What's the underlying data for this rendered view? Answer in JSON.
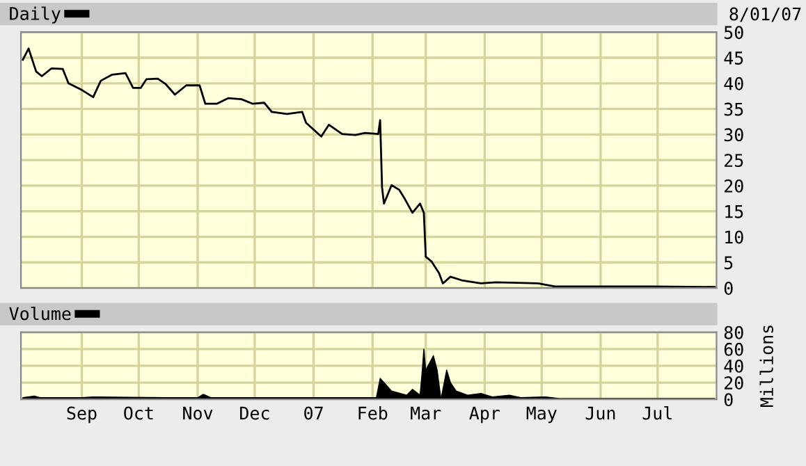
{
  "chart_data": [
    {
      "type": "line",
      "legend": "top left",
      "grid": true,
      "tick_labels": "y",
      "marker": "none",
      "line_style": "solid",
      "annotations": [
        "8/01/07"
      ],
      "xlim": [
        "2006-07-31",
        "2007-08-01"
      ],
      "xticks": [
        {
          "value": "2006-09-01",
          "label": null
        },
        {
          "value": "2006-10-01",
          "label": null
        },
        {
          "value": "2006-11-01",
          "label": null
        },
        {
          "value": "2006-12-01",
          "label": null
        },
        {
          "value": "2007-01-01",
          "label": null
        },
        {
          "value": "2007-02-01",
          "label": null
        },
        {
          "value": "2007-03-01",
          "label": null
        },
        {
          "value": "2007-04-01",
          "label": null
        },
        {
          "value": "2007-05-01",
          "label": null
        },
        {
          "value": "2007-06-01",
          "label": null
        },
        {
          "value": "2007-07-01",
          "label": null
        }
      ],
      "ylim": [
        0,
        50
      ],
      "yticks": [
        0,
        5,
        10,
        15,
        20,
        25,
        30,
        35,
        40,
        45,
        50
      ],
      "series": [
        {
          "name": "Daily",
          "color": "#000000",
          "x": [
            "2006-08-01",
            "2006-08-04",
            "2006-08-08",
            "2006-08-11",
            "2006-08-16",
            "2006-08-22",
            "2006-08-25",
            "2006-09-01",
            "2006-09-07",
            "2006-09-11",
            "2006-09-17",
            "2006-09-24",
            "2006-09-28",
            "2006-10-02",
            "2006-10-05",
            "2006-10-11",
            "2006-10-15",
            "2006-10-20",
            "2006-10-26",
            "2006-11-02",
            "2006-11-05",
            "2006-11-11",
            "2006-11-17",
            "2006-11-24",
            "2006-11-30",
            "2006-12-06",
            "2006-12-10",
            "2006-12-18",
            "2006-12-26",
            "2006-12-28",
            "2007-01-05",
            "2007-01-09",
            "2007-01-16",
            "2007-01-23",
            "2007-01-28",
            "2007-02-04",
            "2007-02-05",
            "2007-02-06",
            "2007-02-07",
            "2007-02-11",
            "2007-02-15",
            "2007-02-18",
            "2007-02-22",
            "2007-02-26",
            "2007-02-28",
            "2007-03-01",
            "2007-03-04",
            "2007-03-08",
            "2007-03-10",
            "2007-03-14",
            "2007-03-20",
            "2007-03-30",
            "2007-04-07",
            "2007-04-29",
            "2007-05-08",
            "2007-06-28",
            "2007-07-31"
          ],
          "values": [
            44.6,
            46.8,
            42.3,
            41.4,
            42.9,
            42.8,
            40.0,
            38.7,
            37.3,
            40.5,
            41.7,
            42.0,
            39.1,
            39.1,
            40.8,
            40.9,
            39.9,
            37.8,
            39.6,
            39.6,
            36.0,
            36.0,
            37.1,
            36.9,
            36.0,
            36.2,
            34.4,
            34.0,
            34.4,
            32.3,
            29.6,
            31.9,
            30.1,
            29.9,
            30.3,
            30.1,
            32.8,
            19.7,
            16.5,
            20.1,
            19.2,
            17.4,
            14.7,
            16.5,
            14.7,
            6.1,
            5.2,
            2.9,
            0.9,
            2.2,
            1.5,
            0.9,
            1.1,
            0.9,
            0.3,
            0.3,
            0.2
          ]
        }
      ]
    },
    {
      "type": "area",
      "legend": "top left",
      "grid": true,
      "ylabel": "Millions",
      "xlim": [
        "2006-07-31",
        "2007-08-01"
      ],
      "xticks": [
        {
          "value": "2006-09-01",
          "label": "Sep"
        },
        {
          "value": "2006-10-01",
          "label": "Oct"
        },
        {
          "value": "2006-11-01",
          "label": "Nov"
        },
        {
          "value": "2006-12-01",
          "label": "Dec"
        },
        {
          "value": "2007-01-01",
          "label": "07"
        },
        {
          "value": "2007-02-01",
          "label": "Feb"
        },
        {
          "value": "2007-03-01",
          "label": "Mar"
        },
        {
          "value": "2007-04-01",
          "label": "Apr"
        },
        {
          "value": "2007-05-01",
          "label": "May"
        },
        {
          "value": "2007-06-01",
          "label": "Jun"
        },
        {
          "value": "2007-07-01",
          "label": "Jul"
        }
      ],
      "ylim": [
        0,
        80
      ],
      "yticks": [
        0,
        20,
        40,
        60,
        80
      ],
      "series": [
        {
          "name": "Volume",
          "color": "#000000",
          "x": [
            "2006-08-01",
            "2006-08-07",
            "2006-08-10",
            "2006-09-01",
            "2006-09-07",
            "2006-10-15",
            "2006-11-01",
            "2006-11-04",
            "2006-11-08",
            "2006-12-01",
            "2007-01-01",
            "2007-01-31",
            "2007-02-03",
            "2007-02-05",
            "2007-02-07",
            "2007-02-11",
            "2007-02-19",
            "2007-02-22",
            "2007-02-26",
            "2007-02-27",
            "2007-02-28",
            "2007-03-01",
            "2007-03-05",
            "2007-03-07",
            "2007-03-09",
            "2007-03-12",
            "2007-03-14",
            "2007-03-17",
            "2007-03-23",
            "2007-03-30",
            "2007-04-05",
            "2007-04-14",
            "2007-04-20",
            "2007-05-03",
            "2007-05-10",
            "2007-07-31"
          ],
          "values": [
            2,
            4,
            2,
            2,
            3,
            2,
            2,
            6,
            2,
            2,
            2,
            2,
            2,
            25,
            20,
            10,
            5,
            12,
            5,
            30,
            60,
            35,
            52,
            35,
            0,
            35,
            20,
            10,
            5,
            7,
            3,
            5,
            2,
            3,
            1,
            1
          ]
        }
      ]
    }
  ]
}
